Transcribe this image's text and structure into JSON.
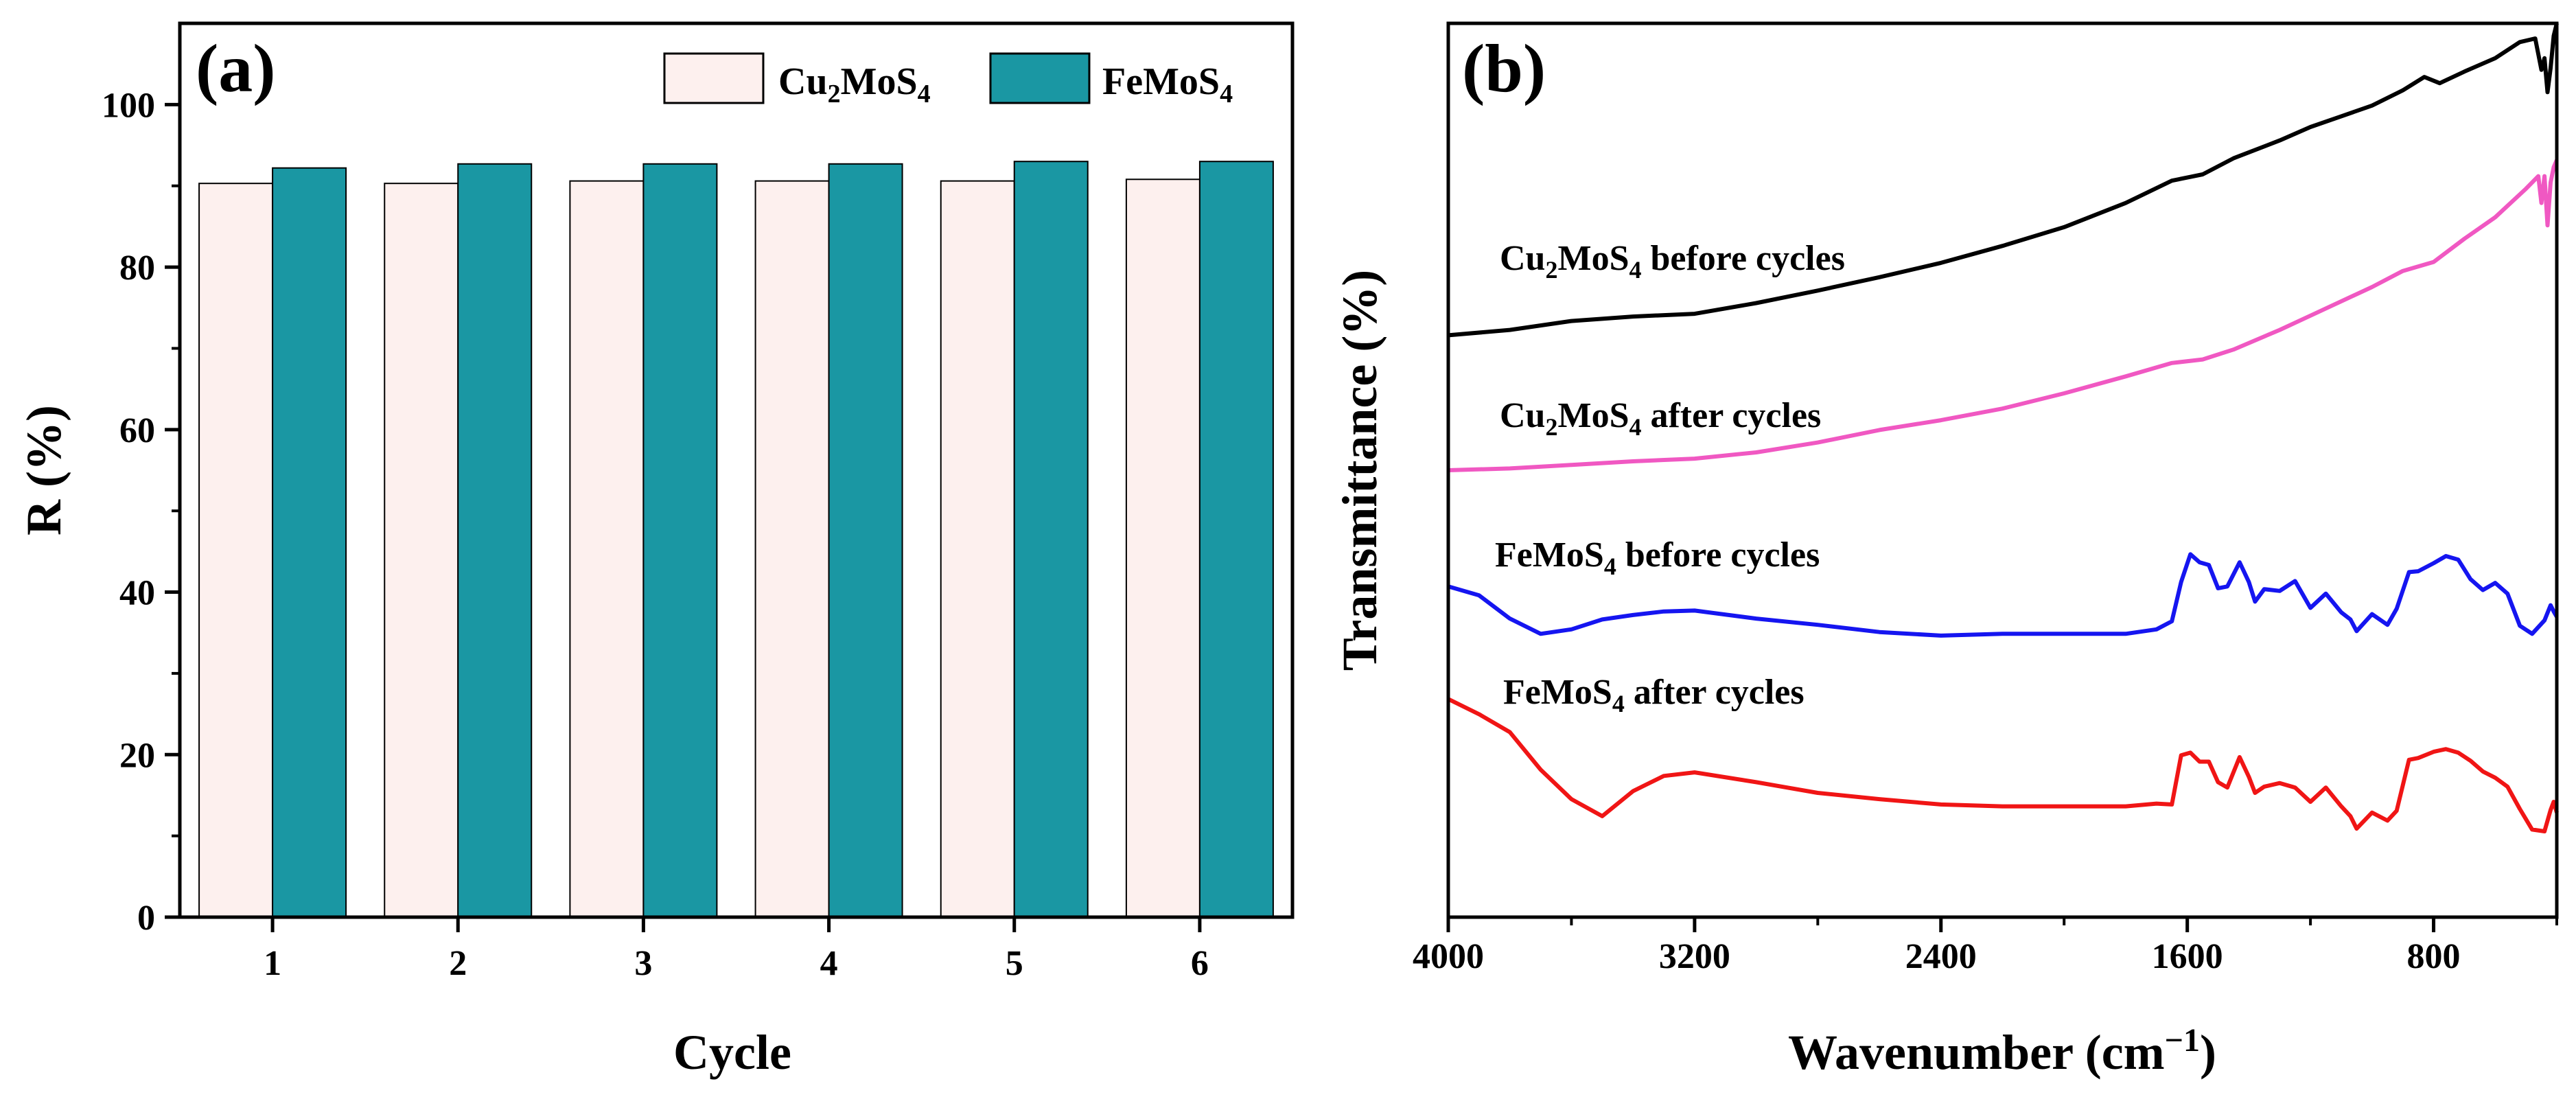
{
  "chart_data": [
    {
      "type": "bar",
      "panel_label": "(a)",
      "categories": [
        "1",
        "2",
        "3",
        "4",
        "5",
        "6"
      ],
      "series": [
        {
          "name": "Cu2MoS4",
          "name_main": "Cu",
          "name_sub1": "2",
          "name_mid": "MoS",
          "name_sub2": "4",
          "color": "#fdf0ee",
          "values": [
            90.3,
            90.3,
            90.6,
            90.6,
            90.6,
            90.8
          ]
        },
        {
          "name": "FeMoS4",
          "name_main": "FeMoS",
          "name_sub": "4",
          "color": "#1a97a3",
          "values": [
            92.2,
            92.7,
            92.7,
            92.7,
            93.0,
            93.0
          ]
        }
      ],
      "xlabel": "Cycle",
      "ylabel": "R (%)",
      "ylim": [
        0,
        110
      ],
      "yticks": [
        "0",
        "20",
        "40",
        "60",
        "80",
        "100"
      ],
      "legend": "top-right"
    },
    {
      "type": "line",
      "panel_label": "(b)",
      "xlabel": "Wavenumber (cm−1)",
      "xlabel_main": "Wavenumber (cm",
      "xlabel_sup": "−1",
      "xlabel_close": ")",
      "ylabel": "Transmittance (%)",
      "xlim": [
        4000,
        400
      ],
      "ylim": [
        0,
        100
      ],
      "xticks": [
        "4000",
        "3200",
        "2400",
        "1600",
        "800"
      ],
      "series": [
        {
          "name": "Cu2MoS4 before cycles",
          "label_main": "Cu",
          "label_sub1": "2",
          "label_mid": "MoS",
          "label_sub2": "4",
          "label_rest": " before cycles",
          "color": "#000000",
          "points": [
            [
              4000,
              65.1
            ],
            [
              3800,
              65.7
            ],
            [
              3600,
              66.7
            ],
            [
              3400,
              67.2
            ],
            [
              3200,
              67.5
            ],
            [
              3000,
              68.7
            ],
            [
              2800,
              70.1
            ],
            [
              2600,
              71.6
            ],
            [
              2400,
              73.2
            ],
            [
              2200,
              75.1
            ],
            [
              2000,
              77.2
            ],
            [
              1800,
              79.9
            ],
            [
              1650,
              82.4
            ],
            [
              1550,
              83.1
            ],
            [
              1450,
              84.9
            ],
            [
              1300,
              86.9
            ],
            [
              1200,
              88.4
            ],
            [
              1100,
              89.6
            ],
            [
              1000,
              90.8
            ],
            [
              900,
              92.5
            ],
            [
              830,
              94.0
            ],
            [
              780,
              93.3
            ],
            [
              700,
              94.6
            ],
            [
              600,
              96.1
            ],
            [
              520,
              97.9
            ],
            [
              470,
              98.3
            ],
            [
              450,
              94.8
            ],
            [
              440,
              96.1
            ],
            [
              430,
              92.3
            ],
            [
              420,
              95.0
            ],
            [
              410,
              98.6
            ],
            [
              400,
              100.0
            ]
          ]
        },
        {
          "name": "Cu2MoS4 after cycles",
          "label_main": "Cu",
          "label_sub1": "2",
          "label_mid": "MoS",
          "label_sub2": "4",
          "label_rest": " after cycles",
          "color": "#f058c2",
          "points": [
            [
              4000,
              50.0
            ],
            [
              3800,
              50.2
            ],
            [
              3600,
              50.6
            ],
            [
              3400,
              51.0
            ],
            [
              3200,
              51.3
            ],
            [
              3000,
              52.0
            ],
            [
              2800,
              53.1
            ],
            [
              2600,
              54.5
            ],
            [
              2400,
              55.6
            ],
            [
              2200,
              56.9
            ],
            [
              2000,
              58.6
            ],
            [
              1800,
              60.5
            ],
            [
              1650,
              62.0
            ],
            [
              1550,
              62.4
            ],
            [
              1450,
              63.5
            ],
            [
              1300,
              65.7
            ],
            [
              1200,
              67.3
            ],
            [
              1000,
              70.5
            ],
            [
              900,
              72.3
            ],
            [
              800,
              73.3
            ],
            [
              700,
              75.9
            ],
            [
              600,
              78.3
            ],
            [
              500,
              81.5
            ],
            [
              460,
              82.9
            ],
            [
              450,
              79.9
            ],
            [
              440,
              82.9
            ],
            [
              430,
              77.4
            ],
            [
              420,
              82.2
            ],
            [
              410,
              83.9
            ],
            [
              400,
              84.7
            ]
          ]
        },
        {
          "name": "FeMoS4 before cycles",
          "label_main": "FeMoS",
          "label_sub": "4",
          "label_rest": " before cycles",
          "color": "#1515f0",
          "points": [
            [
              4000,
              37.0
            ],
            [
              3900,
              36.0
            ],
            [
              3800,
              33.4
            ],
            [
              3700,
              31.7
            ],
            [
              3600,
              32.2
            ],
            [
              3500,
              33.3
            ],
            [
              3400,
              33.8
            ],
            [
              3300,
              34.2
            ],
            [
              3200,
              34.3
            ],
            [
              3000,
              33.4
            ],
            [
              2800,
              32.7
            ],
            [
              2600,
              31.9
            ],
            [
              2400,
              31.5
            ],
            [
              2200,
              31.7
            ],
            [
              2000,
              31.7
            ],
            [
              1800,
              31.7
            ],
            [
              1700,
              32.2
            ],
            [
              1650,
              33.1
            ],
            [
              1620,
              37.5
            ],
            [
              1590,
              40.6
            ],
            [
              1560,
              39.7
            ],
            [
              1530,
              39.4
            ],
            [
              1500,
              36.8
            ],
            [
              1470,
              37.0
            ],
            [
              1430,
              39.7
            ],
            [
              1400,
              37.5
            ],
            [
              1380,
              35.3
            ],
            [
              1350,
              36.7
            ],
            [
              1300,
              36.5
            ],
            [
              1250,
              37.6
            ],
            [
              1200,
              34.6
            ],
            [
              1150,
              36.2
            ],
            [
              1100,
              34.1
            ],
            [
              1070,
              33.3
            ],
            [
              1050,
              32.0
            ],
            [
              1000,
              33.9
            ],
            [
              950,
              32.7
            ],
            [
              920,
              34.5
            ],
            [
              880,
              38.6
            ],
            [
              850,
              38.7
            ],
            [
              800,
              39.6
            ],
            [
              760,
              40.4
            ],
            [
              720,
              40.0
            ],
            [
              680,
              37.8
            ],
            [
              640,
              36.6
            ],
            [
              600,
              37.4
            ],
            [
              560,
              36.2
            ],
            [
              520,
              32.6
            ],
            [
              480,
              31.7
            ],
            [
              440,
              33.2
            ],
            [
              420,
              34.9
            ],
            [
              410,
              34.2
            ],
            [
              400,
              33.6
            ]
          ]
        },
        {
          "name": "FeMoS4 after cycles",
          "label_main": "FeMoS",
          "label_sub": "4",
          "label_rest": " after cycles",
          "color": "#f01515",
          "points": [
            [
              4000,
              24.4
            ],
            [
              3900,
              22.7
            ],
            [
              3800,
              20.7
            ],
            [
              3700,
              16.5
            ],
            [
              3600,
              13.2
            ],
            [
              3500,
              11.3
            ],
            [
              3400,
              14.1
            ],
            [
              3300,
              15.8
            ],
            [
              3200,
              16.2
            ],
            [
              3000,
              15.1
            ],
            [
              2800,
              13.9
            ],
            [
              2600,
              13.2
            ],
            [
              2400,
              12.6
            ],
            [
              2200,
              12.4
            ],
            [
              2000,
              12.4
            ],
            [
              1800,
              12.4
            ],
            [
              1700,
              12.7
            ],
            [
              1650,
              12.6
            ],
            [
              1620,
              18.1
            ],
            [
              1590,
              18.4
            ],
            [
              1560,
              17.4
            ],
            [
              1530,
              17.4
            ],
            [
              1500,
              15.1
            ],
            [
              1470,
              14.5
            ],
            [
              1430,
              17.9
            ],
            [
              1400,
              15.7
            ],
            [
              1380,
              13.9
            ],
            [
              1350,
              14.6
            ],
            [
              1300,
              15.0
            ],
            [
              1250,
              14.5
            ],
            [
              1200,
              12.9
            ],
            [
              1150,
              14.5
            ],
            [
              1100,
              12.4
            ],
            [
              1070,
              11.3
            ],
            [
              1050,
              9.9
            ],
            [
              1000,
              11.7
            ],
            [
              950,
              10.8
            ],
            [
              920,
              11.9
            ],
            [
              880,
              17.6
            ],
            [
              850,
              17.8
            ],
            [
              800,
              18.5
            ],
            [
              760,
              18.8
            ],
            [
              720,
              18.4
            ],
            [
              680,
              17.5
            ],
            [
              640,
              16.3
            ],
            [
              600,
              15.6
            ],
            [
              560,
              14.6
            ],
            [
              520,
              12.1
            ],
            [
              480,
              9.8
            ],
            [
              440,
              9.6
            ],
            [
              420,
              12.0
            ],
            [
              410,
              12.9
            ],
            [
              400,
              11.7
            ]
          ]
        }
      ]
    }
  ]
}
